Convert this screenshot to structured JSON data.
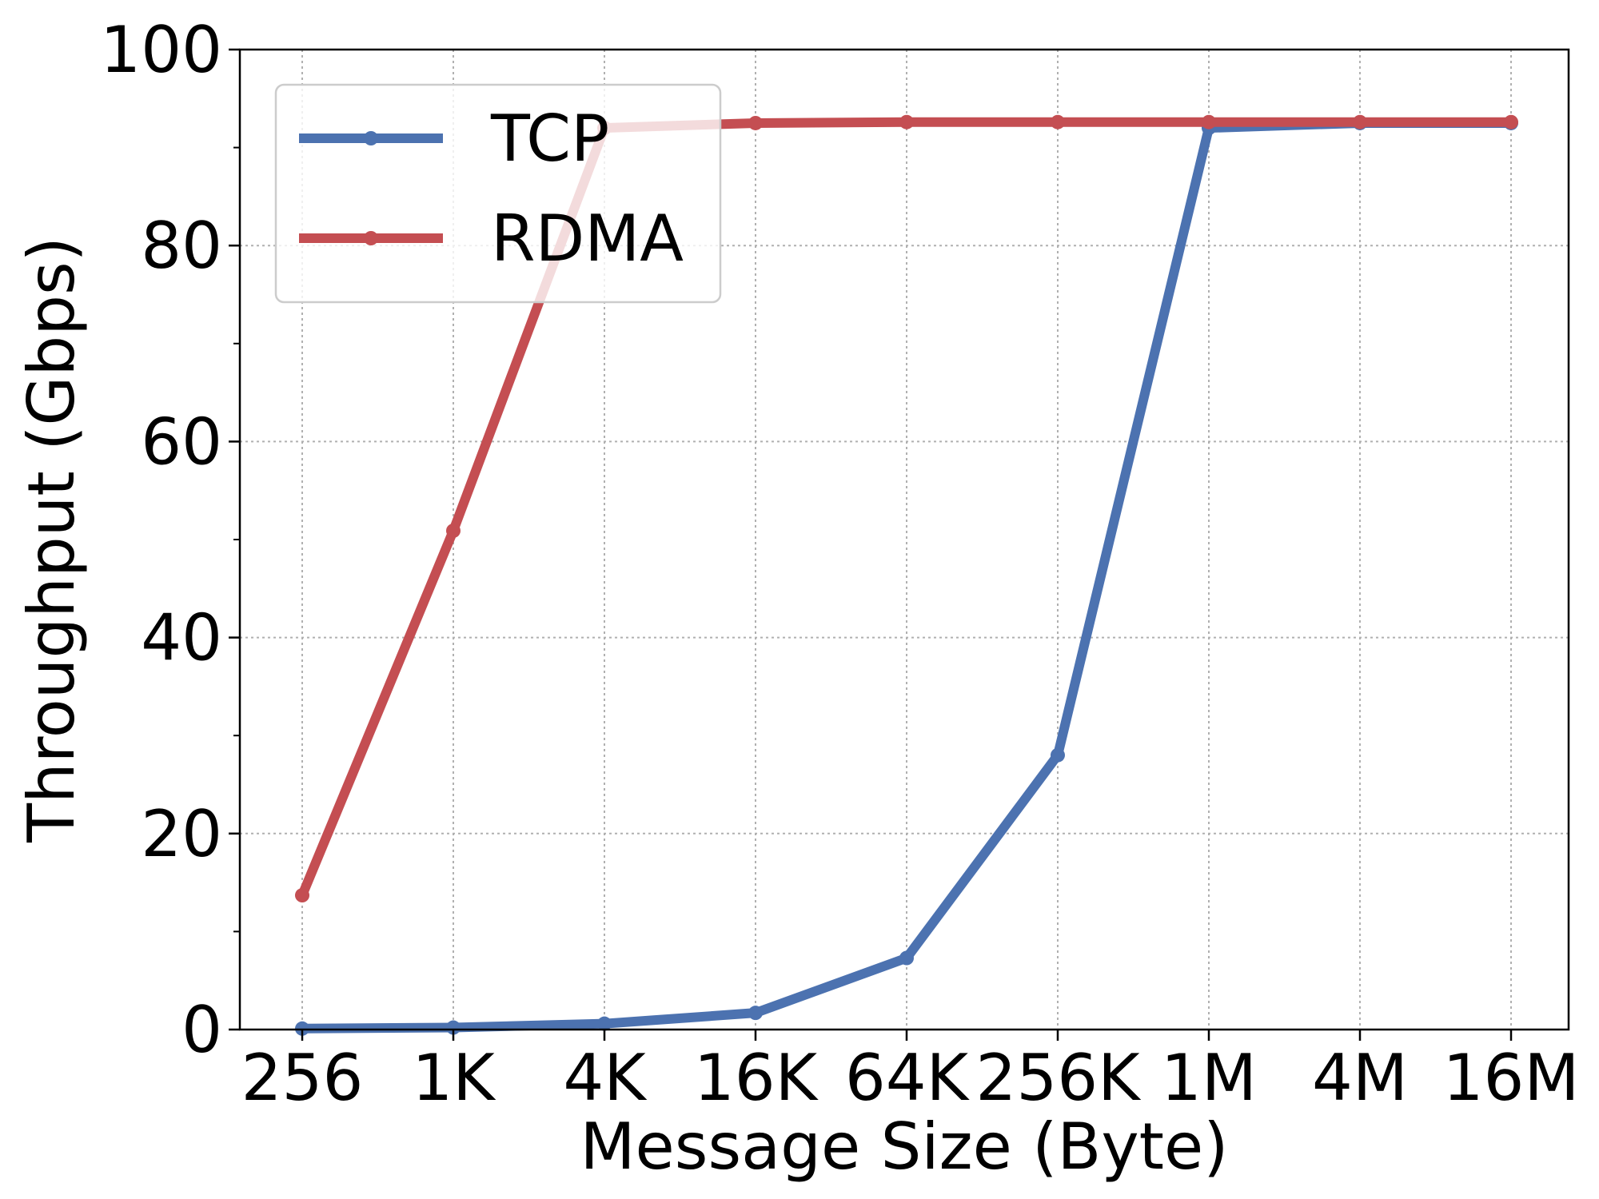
{
  "chart_data": {
    "type": "line",
    "title": "",
    "xlabel": "Message Size (Byte)",
    "ylabel": "Throughput (Gbps)",
    "categories": [
      "256",
      "1K",
      "4K",
      "16K",
      "64K",
      "256K",
      "1M",
      "4M",
      "16M"
    ],
    "ylim": [
      0,
      100
    ],
    "yticks": [
      "0",
      "20",
      "40",
      "60",
      "80",
      "100"
    ],
    "grid": true,
    "legend_position": "top-left",
    "series": [
      {
        "name": "TCP",
        "color": "#4c72b0",
        "values": [
          0.1,
          0.2,
          0.6,
          1.7,
          7.3,
          28.0,
          92.0,
          92.5,
          92.5
        ]
      },
      {
        "name": "RDMA",
        "color": "#c44e52",
        "values": [
          13.7,
          50.9,
          92.0,
          92.5,
          92.6,
          92.6,
          92.6,
          92.6,
          92.6
        ]
      }
    ]
  }
}
